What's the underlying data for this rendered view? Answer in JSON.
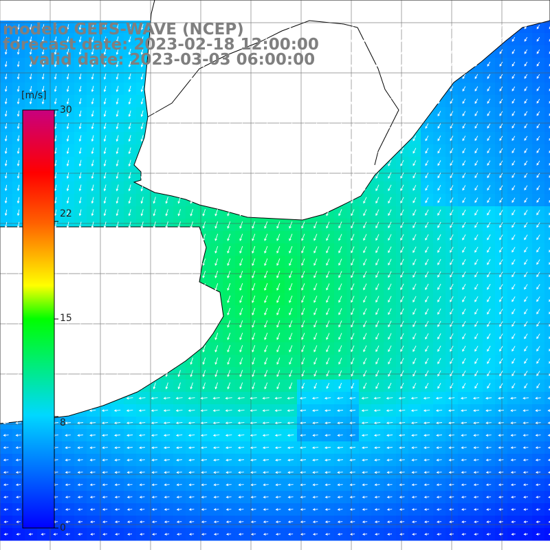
{
  "header": {
    "model": "modelo GEFS-WAVE (NCEP)",
    "forecast": "forecast date: 2023-02-18 12:00:00",
    "valid": "valid date: 2023-03-03 06:00:00"
  },
  "colorbar": {
    "unit": "[m/s]",
    "min": 0,
    "max": 30,
    "tick_labels": [
      "30",
      "22",
      "15",
      "8",
      "0"
    ],
    "tick_values": [
      30,
      22,
      15,
      8,
      0
    ],
    "colors": [
      "#0000ff",
      "#00c8ff",
      "#00ff00",
      "#ffff00",
      "#ff8000",
      "#ff0000",
      "#c8007f"
    ]
  },
  "map": {
    "variable": "wind speed",
    "arrow_direction": "mostly toward southwest / south-southwest offshore; westward in south",
    "land_color": "#ffffff",
    "grid": true
  }
}
